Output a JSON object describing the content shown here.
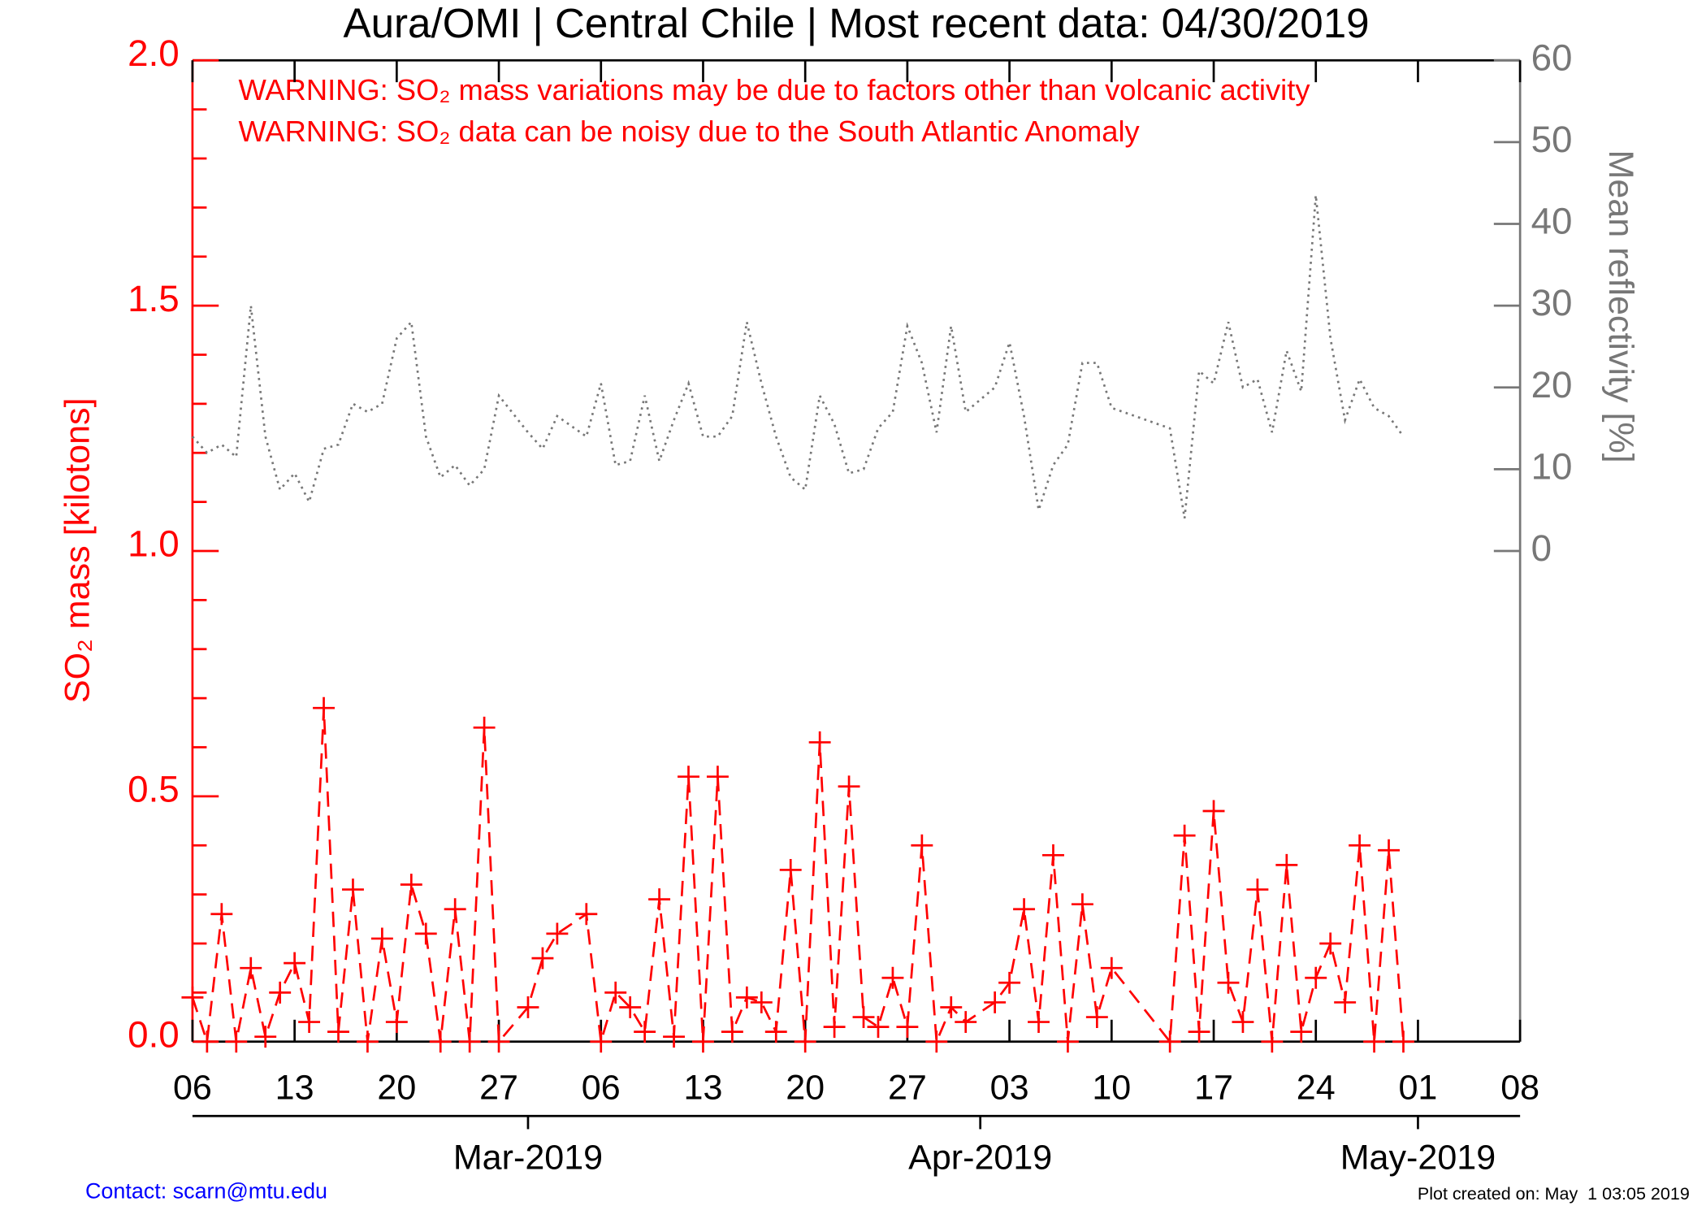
{
  "chart_data": {
    "type": "line",
    "title": "Aura/OMI | Central Chile | Most recent data: 04/30/2019",
    "annotations": [
      "WARNING: SO₂ mass variations may be due to factors other than volcanic activity",
      "WARNING: SO₂ data can be noisy due to the South Atlantic Anomaly"
    ],
    "ylabel": "SO₂ mass [kilotons]",
    "y2label": "Mean reflectivity [%]",
    "footer_left": "Contact: scarn@mtu.edu",
    "footer_right": "Plot created on: May  1 03:05 2019",
    "x": [
      "2019-02-06",
      "2019-02-07",
      "2019-02-08",
      "2019-02-09",
      "2019-02-10",
      "2019-02-11",
      "2019-02-12",
      "2019-02-13",
      "2019-02-14",
      "2019-02-15",
      "2019-02-16",
      "2019-02-17",
      "2019-02-18",
      "2019-02-19",
      "2019-02-20",
      "2019-02-21",
      "2019-02-22",
      "2019-02-23",
      "2019-02-24",
      "2019-02-25",
      "2019-02-26",
      "2019-02-27",
      "2019-03-01",
      "2019-03-02",
      "2019-03-03",
      "2019-03-05",
      "2019-03-06",
      "2019-03-07",
      "2019-03-08",
      "2019-03-09",
      "2019-03-10",
      "2019-03-11",
      "2019-03-12",
      "2019-03-13",
      "2019-03-14",
      "2019-03-15",
      "2019-03-16",
      "2019-03-17",
      "2019-03-18",
      "2019-03-19",
      "2019-03-20",
      "2019-03-21",
      "2019-03-22",
      "2019-03-23",
      "2019-03-24",
      "2019-03-25",
      "2019-03-26",
      "2019-03-27",
      "2019-03-28",
      "2019-03-29",
      "2019-03-30",
      "2019-03-31",
      "2019-04-02",
      "2019-04-03",
      "2019-04-04",
      "2019-04-05",
      "2019-04-06",
      "2019-04-07",
      "2019-04-08",
      "2019-04-09",
      "2019-04-10",
      "2019-04-14",
      "2019-04-15",
      "2019-04-16",
      "2019-04-17",
      "2019-04-18",
      "2019-04-19",
      "2019-04-20",
      "2019-04-21",
      "2019-04-22",
      "2019-04-23",
      "2019-04-24",
      "2019-04-25",
      "2019-04-26",
      "2019-04-27",
      "2019-04-28",
      "2019-04-29",
      "2019-04-30"
    ],
    "series": [
      {
        "color": "#ff0000",
        "marker": "plus",
        "dash": "dashed",
        "values": [
          0.09,
          0.0,
          0.26,
          0.0,
          0.15,
          0.01,
          0.1,
          0.16,
          0.04,
          0.68,
          0.02,
          0.31,
          0.0,
          0.21,
          0.04,
          0.32,
          0.22,
          0.0,
          0.27,
          0.0,
          0.64,
          0.0,
          0.07,
          0.17,
          0.22,
          0.26,
          0.0,
          0.1,
          0.07,
          0.02,
          0.29,
          0.01,
          0.54,
          0.0,
          0.54,
          0.02,
          0.09,
          0.08,
          0.02,
          0.35,
          0.0,
          0.61,
          0.03,
          0.52,
          0.05,
          0.03,
          0.13,
          0.03,
          0.4,
          0.0,
          0.07,
          0.04,
          0.08,
          0.12,
          0.27,
          0.04,
          0.38,
          0.0,
          0.28,
          0.05,
          0.15,
          0.0,
          0.42,
          0.02,
          0.47,
          0.12,
          0.04,
          0.31,
          0.0,
          0.36,
          0.02,
          0.13,
          0.2,
          0.08,
          0.4,
          0.0,
          0.39,
          0.0
        ]
      },
      {
        "color": "#777777",
        "dash": "dotted",
        "axis": "y2",
        "values": [
          14,
          12,
          13,
          11.5,
          30,
          14,
          7.5,
          9.5,
          6,
          12.5,
          13,
          18,
          17,
          18,
          26,
          28,
          14,
          9,
          10.5,
          8,
          10,
          19,
          14.5,
          12.5,
          16.5,
          14,
          20.5,
          10.5,
          11,
          19,
          11,
          16,
          20.5,
          14,
          14,
          16.5,
          28,
          20.5,
          14,
          9,
          7.5,
          19,
          15.5,
          9.5,
          10,
          15,
          17,
          27.5,
          23,
          14.5,
          27.5,
          17,
          20,
          25.5,
          16.5,
          5,
          10.5,
          13,
          23,
          23,
          17.5,
          15,
          4,
          22,
          20.5,
          28,
          20,
          21,
          14.5,
          24.5,
          19.5,
          43.5,
          26,
          16,
          21,
          17.5,
          16.5,
          14
        ]
      }
    ],
    "xlim": [
      "2019-02-06",
      "2019-05-08"
    ],
    "xticks": [
      {
        "value": "2019-02-06",
        "label": "06"
      },
      {
        "value": "2019-02-13",
        "label": "13"
      },
      {
        "value": "2019-02-20",
        "label": "20"
      },
      {
        "value": "2019-02-27",
        "label": "27"
      },
      {
        "value": "2019-03-06",
        "label": "06"
      },
      {
        "value": "2019-03-13",
        "label": "13"
      },
      {
        "value": "2019-03-20",
        "label": "20"
      },
      {
        "value": "2019-03-27",
        "label": "27"
      },
      {
        "value": "2019-04-03",
        "label": "03"
      },
      {
        "value": "2019-04-10",
        "label": "10"
      },
      {
        "value": "2019-04-17",
        "label": "17"
      },
      {
        "value": "2019-04-24",
        "label": "24"
      },
      {
        "value": "2019-05-01",
        "label": "01"
      },
      {
        "value": "2019-05-08",
        "label": "08"
      }
    ],
    "month_ticks": [
      {
        "value": "2019-03-01",
        "label": "Mar-2019"
      },
      {
        "value": "2019-04-01",
        "label": "Apr-2019"
      },
      {
        "value": "2019-05-01",
        "label": "May-2019"
      }
    ],
    "ylim": [
      0,
      2.0
    ],
    "yticks": [
      {
        "value": 0,
        "label": "0.0"
      },
      {
        "value": 0.5,
        "label": "0.5"
      },
      {
        "value": 1,
        "label": "1.0"
      },
      {
        "value": 1.5,
        "label": "1.5"
      },
      {
        "value": 2,
        "label": "2.0"
      }
    ],
    "yminorticks": [
      0.1,
      0.2,
      0.3,
      0.4,
      0.6,
      0.7,
      0.8,
      0.9,
      1.1,
      1.2,
      1.3,
      1.4,
      1.6,
      1.7,
      1.8,
      1.9
    ],
    "y2lim": [
      -60,
      60
    ],
    "y2ticks": [
      0,
      10,
      20,
      30,
      40,
      50,
      60
    ]
  }
}
